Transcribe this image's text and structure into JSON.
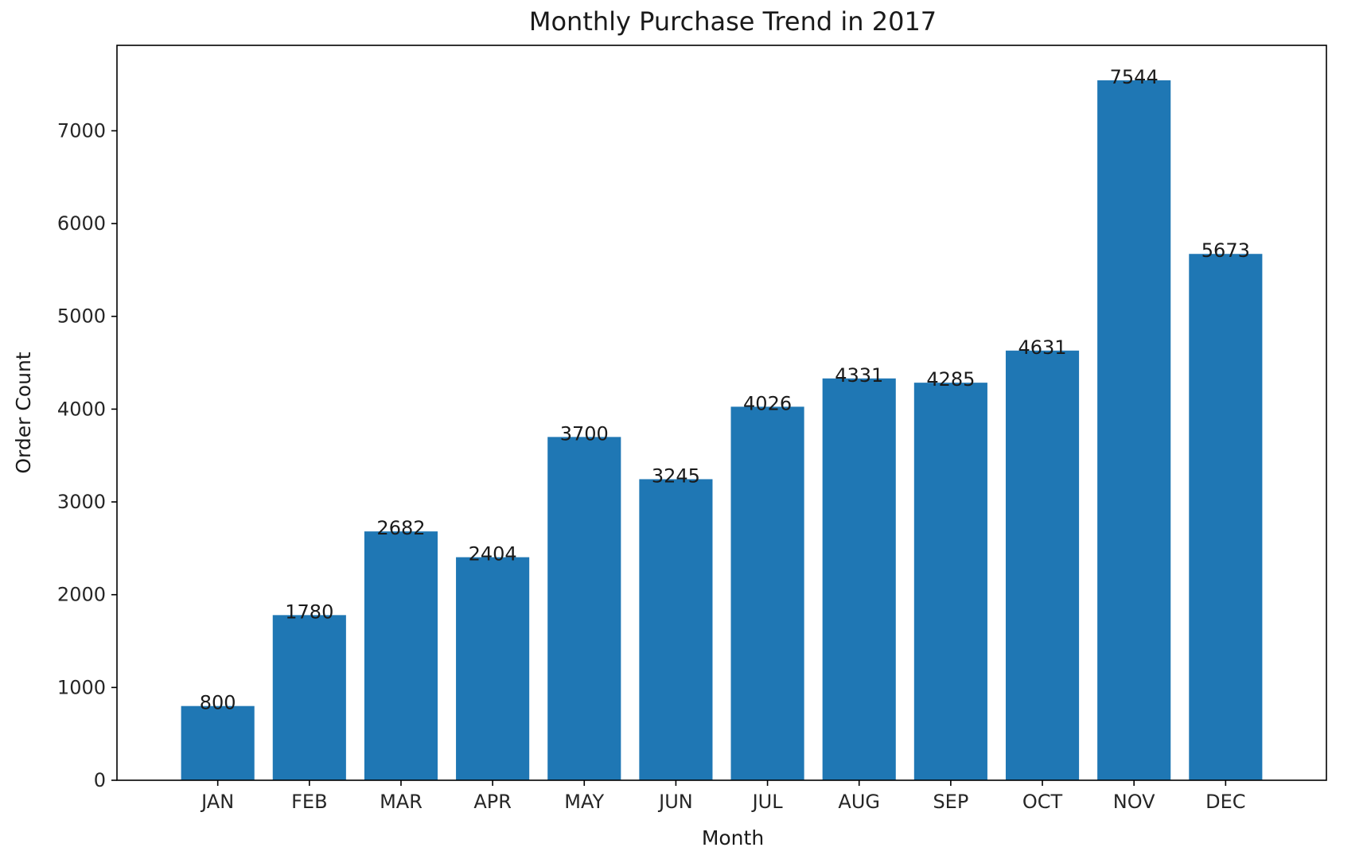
{
  "chart_data": {
    "type": "bar",
    "title": "Monthly Purchase Trend in 2017",
    "xlabel": "Month",
    "ylabel": "Order Count",
    "categories": [
      "JAN",
      "FEB",
      "MAR",
      "APR",
      "MAY",
      "JUN",
      "JUL",
      "AUG",
      "SEP",
      "OCT",
      "NOV",
      "DEC"
    ],
    "values": [
      800,
      1780,
      2682,
      2404,
      3700,
      3245,
      4026,
      4331,
      4285,
      4631,
      7544,
      5673
    ],
    "data_labels": [
      "800",
      "1780",
      "2682",
      "2404",
      "3700",
      "3245",
      "4026",
      "4331",
      "4285",
      "4631",
      "7544",
      "5673"
    ],
    "ylim": [
      0,
      7921
    ],
    "yticks": [
      0,
      1000,
      2000,
      3000,
      4000,
      5000,
      6000,
      7000
    ],
    "ytick_labels": [
      "0",
      "1000",
      "2000",
      "3000",
      "4000",
      "5000",
      "6000",
      "7000"
    ],
    "grid": false,
    "legend": "none",
    "colors": {
      "bar": "#1f77b4",
      "axis": "#000000",
      "text": "#1a1a1a"
    }
  }
}
